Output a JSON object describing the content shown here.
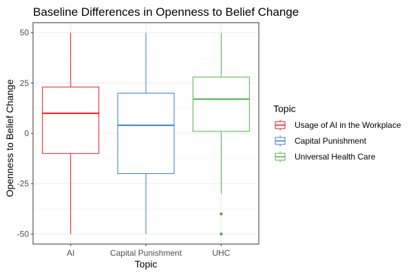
{
  "chart_data": {
    "type": "box",
    "title": "Baseline Differences in Openness to Belief Change",
    "xlabel": "Topic",
    "ylabel": "Openness to Belief Change",
    "ylim": [
      -55,
      55
    ],
    "yticks": [
      -50,
      -25,
      0,
      25,
      50
    ],
    "ytick_labels": [
      "-50",
      "-25",
      "0",
      "25",
      "50"
    ],
    "grid": true,
    "legend_title": "Topic",
    "legend_position": "right",
    "categories": [
      "AI",
      "Capital Punishment",
      "UHC"
    ],
    "series": [
      {
        "name": "Usage of AI in the Workplace",
        "category": "AI",
        "color": "#e41a1c",
        "min": -50,
        "q1": -10,
        "median": 10,
        "q3": 23,
        "max": 50,
        "outliers": []
      },
      {
        "name": "Capital Punishment",
        "category": "Capital Punishment",
        "color": "#377eb8",
        "min": -50,
        "q1": -20,
        "median": 4,
        "q3": 20,
        "max": 50,
        "outliers": []
      },
      {
        "name": "Universal Health Care",
        "category": "UHC",
        "color": "#4daf4a",
        "min": -30,
        "q1": 1,
        "median": 17,
        "q3": 28,
        "max": 50,
        "outliers": [
          -40,
          -50
        ]
      }
    ]
  }
}
